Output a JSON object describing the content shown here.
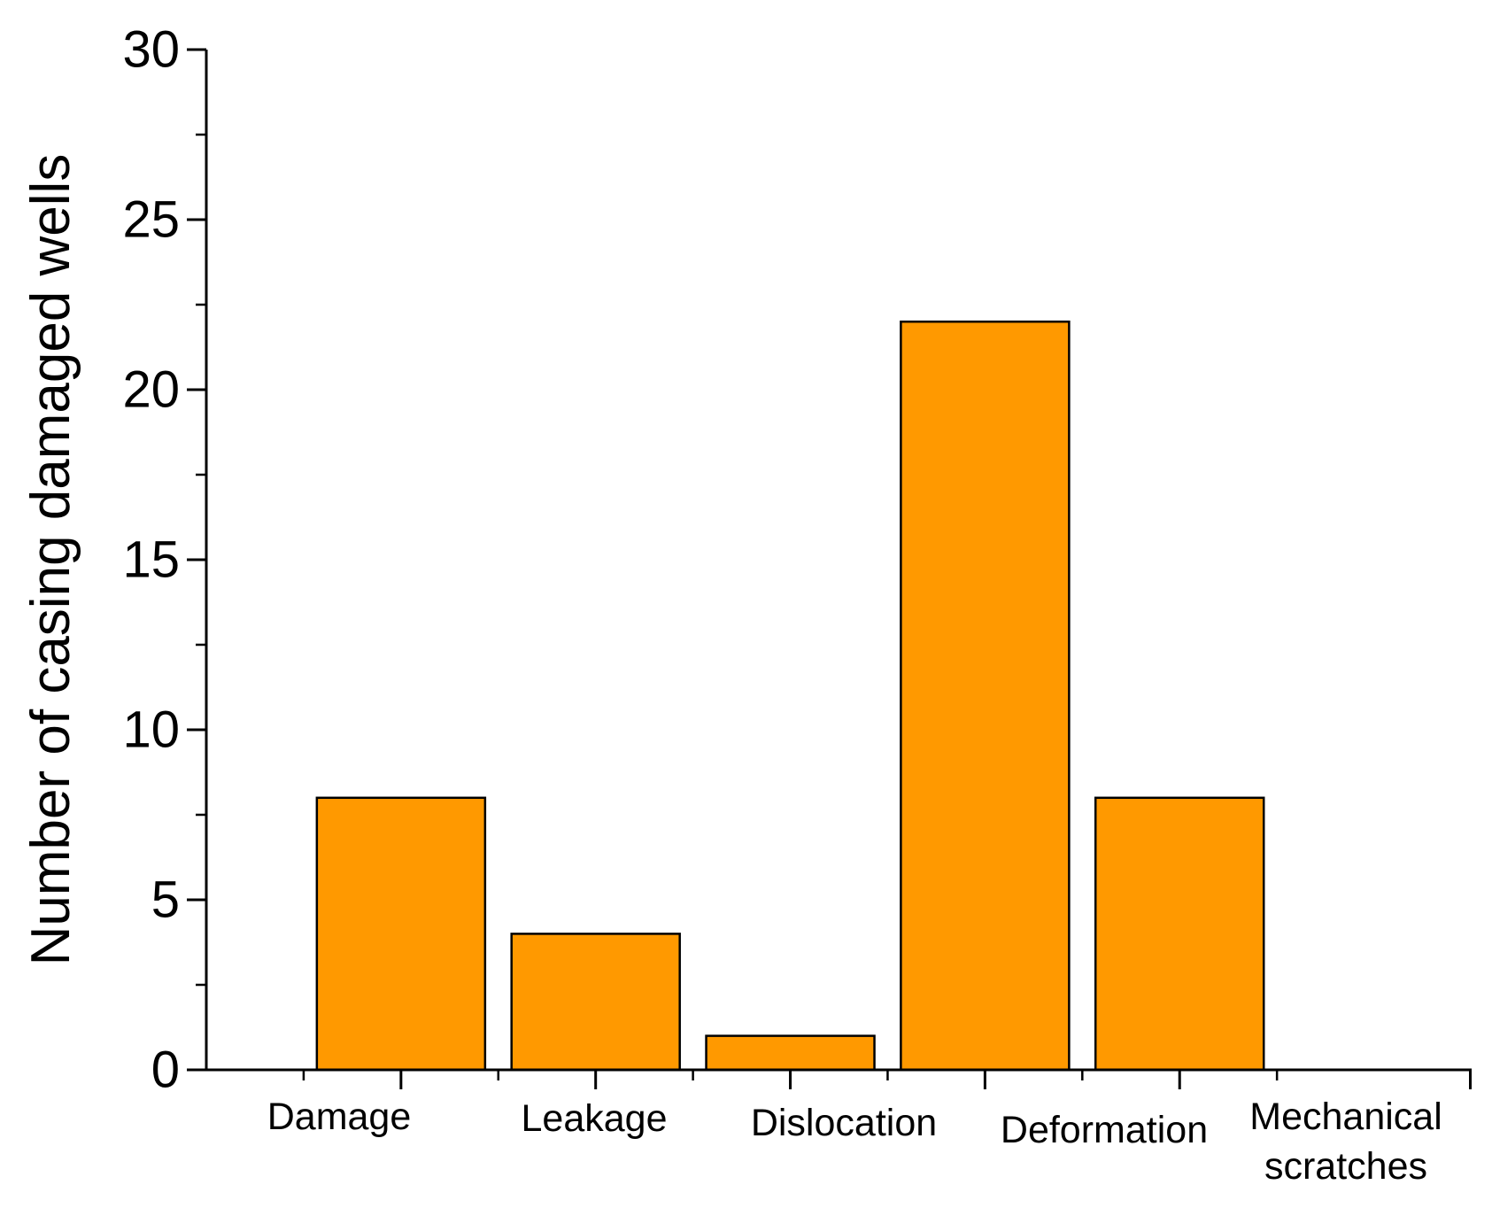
{
  "chart_data": {
    "type": "bar",
    "title": "",
    "xlabel": "",
    "ylabel": "Number of casing damaged wells",
    "categories": [
      [
        "Damage"
      ],
      [
        "Leakage"
      ],
      [
        "Dislocation"
      ],
      [
        "Deformation"
      ],
      [
        "Mechanical",
        "scratches"
      ]
    ],
    "values": [
      8,
      4,
      1,
      22,
      8
    ],
    "ylim": [
      0,
      30
    ],
    "yticks": [
      0,
      5,
      10,
      15,
      20,
      25,
      30
    ],
    "grid": false,
    "legend": "none",
    "colors": {
      "bar_fill": "#FF9900",
      "bar_stroke": "#000000",
      "axis": "#000000"
    }
  }
}
